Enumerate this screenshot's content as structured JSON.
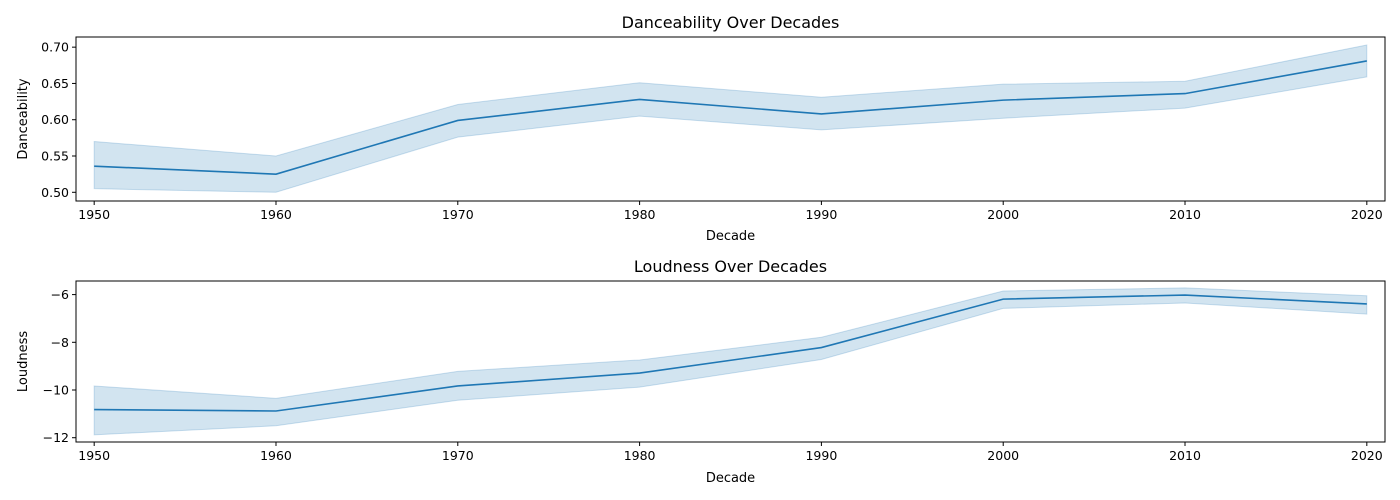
{
  "chart_data": [
    {
      "type": "line",
      "title": "Danceability Over Decades",
      "xlabel": "Decade",
      "ylabel": "Danceability",
      "x": [
        1950,
        1960,
        1970,
        1980,
        1990,
        2000,
        2010,
        2020
      ],
      "series": [
        {
          "values": [
            0.536,
            0.525,
            0.599,
            0.628,
            0.608,
            0.627,
            0.636,
            0.681
          ],
          "ci_low": [
            0.505,
            0.5,
            0.576,
            0.605,
            0.586,
            0.602,
            0.616,
            0.659
          ],
          "ci_high": [
            0.57,
            0.55,
            0.621,
            0.651,
            0.631,
            0.649,
            0.653,
            0.703
          ]
        }
      ],
      "xlim": [
        1949,
        2021
      ],
      "ylim": [
        0.488,
        0.714
      ],
      "xticks": [
        1950,
        1960,
        1970,
        1980,
        1990,
        2000,
        2010,
        2020
      ],
      "yticks": [
        0.5,
        0.55,
        0.6,
        0.65,
        0.7
      ],
      "ytick_labels": [
        "0.50",
        "0.55",
        "0.60",
        "0.65",
        "0.70"
      ],
      "grid": false,
      "colors": {
        "line": "#1f77b4",
        "band": "#1f77b4"
      }
    },
    {
      "type": "line",
      "title": "Loudness Over Decades",
      "xlabel": "Decade",
      "ylabel": "Loudness",
      "x": [
        1950,
        1960,
        1970,
        1980,
        1990,
        2000,
        2010,
        2020
      ],
      "series": [
        {
          "values": [
            -10.82,
            -10.88,
            -9.83,
            -9.29,
            -8.22,
            -6.19,
            -6.02,
            -6.39
          ],
          "ci_low": [
            -11.88,
            -11.5,
            -10.43,
            -9.88,
            -8.72,
            -6.58,
            -6.35,
            -6.82
          ],
          "ci_high": [
            -9.83,
            -10.35,
            -9.22,
            -8.74,
            -7.79,
            -5.85,
            -5.72,
            -6.05
          ]
        }
      ],
      "xlim": [
        1949,
        2021
      ],
      "ylim": [
        -12.18,
        -5.43
      ],
      "xticks": [
        1950,
        1960,
        1970,
        1980,
        1990,
        2000,
        2010,
        2020
      ],
      "yticks": [
        -12,
        -10,
        -8,
        -6
      ],
      "ytick_labels": [
        "−12",
        "−10",
        "−8",
        "−6"
      ],
      "grid": false,
      "colors": {
        "line": "#1f77b4",
        "band": "#1f77b4"
      }
    }
  ]
}
